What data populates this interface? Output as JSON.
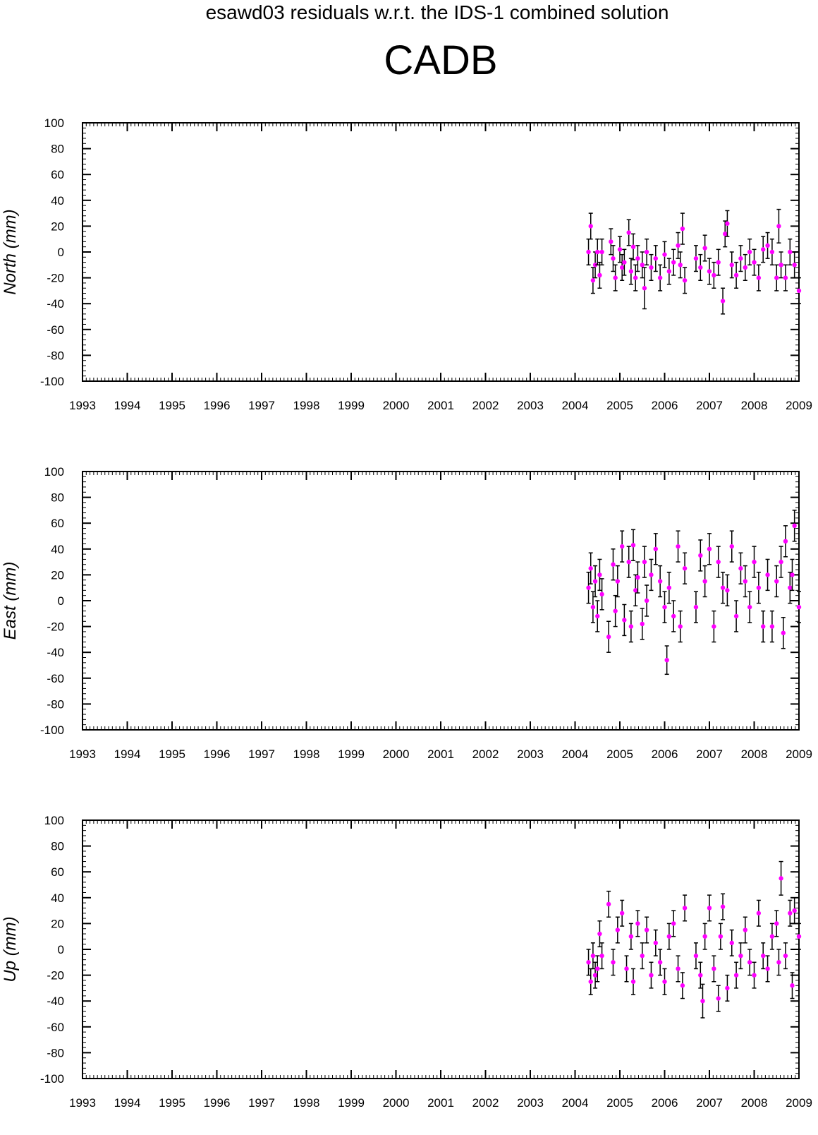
{
  "page": {
    "suptitle": "esawd03 residuals w.r.t. the IDS-1 combined solution",
    "station": "CADB"
  },
  "colors": {
    "points": "#ff00ff",
    "errorbars": "#000000",
    "axes": "#000000"
  },
  "chart_data": [
    {
      "type": "scatter",
      "ylabel": "North (mm)",
      "xlim": [
        1993,
        2009
      ],
      "ylim": [
        -100,
        100
      ],
      "x_ticks": [
        "1993",
        "1994",
        "1995",
        "1996",
        "1997",
        "1998",
        "1999",
        "2000",
        "2001",
        "2002",
        "2003",
        "2004",
        "2005",
        "2006",
        "2007",
        "2008",
        "2009"
      ],
      "y_ticks": [
        "100",
        "80",
        "60",
        "40",
        "20",
        "0",
        "-20",
        "-40",
        "-60",
        "-80",
        "-100"
      ],
      "grid": false,
      "series": [
        {
          "x": [
            2004.3,
            2004.35,
            2004.4,
            2004.45,
            2004.5,
            2004.55,
            2004.6,
            2004.8,
            2004.85,
            2004.9,
            2005.0,
            2005.05,
            2005.1,
            2005.2,
            2005.25,
            2005.3,
            2005.35,
            2005.4,
            2005.5,
            2005.55,
            2005.6,
            2005.7,
            2005.8,
            2005.9,
            2006.0,
            2006.1,
            2006.2,
            2006.3,
            2006.35,
            2006.4,
            2006.45,
            2006.7,
            2006.8,
            2006.9,
            2007.0,
            2007.1,
            2007.2,
            2007.3,
            2007.35,
            2007.4,
            2007.5,
            2007.6,
            2007.7,
            2007.8,
            2007.9,
            2008.0,
            2008.1,
            2008.2,
            2008.3,
            2008.4,
            2008.5,
            2008.55,
            2008.6,
            2008.7,
            2008.8,
            2008.9,
            2009.0
          ],
          "y": [
            0,
            20,
            -22,
            -10,
            0,
            -18,
            0,
            8,
            -5,
            -20,
            2,
            -12,
            -8,
            15,
            -15,
            4,
            -20,
            -5,
            -10,
            -28,
            0,
            -12,
            -5,
            -20,
            -2,
            -15,
            -8,
            5,
            -10,
            18,
            -22,
            -5,
            -12,
            3,
            -15,
            -18,
            -8,
            -38,
            14,
            22,
            -10,
            -18,
            -5,
            -12,
            0,
            -8,
            -20,
            2,
            5,
            0,
            -20,
            20,
            -10,
            -20,
            0,
            -10,
            -30
          ],
          "err": [
            10,
            10,
            10,
            10,
            10,
            10,
            10,
            10,
            10,
            10,
            10,
            10,
            10,
            10,
            10,
            10,
            10,
            10,
            10,
            16,
            10,
            10,
            10,
            10,
            10,
            10,
            10,
            10,
            10,
            12,
            10,
            10,
            10,
            10,
            10,
            10,
            10,
            10,
            10,
            10,
            10,
            10,
            10,
            10,
            10,
            10,
            10,
            10,
            10,
            10,
            10,
            13,
            10,
            10,
            10,
            10,
            10
          ]
        }
      ]
    },
    {
      "type": "scatter",
      "ylabel": "East (mm)",
      "xlim": [
        1993,
        2009
      ],
      "ylim": [
        -100,
        100
      ],
      "x_ticks": [
        "1993",
        "1994",
        "1995",
        "1996",
        "1997",
        "1998",
        "1999",
        "2000",
        "2001",
        "2002",
        "2003",
        "2004",
        "2005",
        "2006",
        "2007",
        "2008",
        "2009"
      ],
      "y_ticks": [
        "100",
        "80",
        "60",
        "40",
        "20",
        "0",
        "-20",
        "-40",
        "-60",
        "-80",
        "-100"
      ],
      "grid": false,
      "series": [
        {
          "x": [
            2004.3,
            2004.35,
            2004.4,
            2004.45,
            2004.5,
            2004.55,
            2004.6,
            2004.75,
            2004.85,
            2004.9,
            2004.95,
            2005.05,
            2005.1,
            2005.2,
            2005.25,
            2005.3,
            2005.35,
            2005.4,
            2005.5,
            2005.55,
            2005.6,
            2005.7,
            2005.8,
            2005.9,
            2006.0,
            2006.05,
            2006.1,
            2006.2,
            2006.3,
            2006.35,
            2006.45,
            2006.7,
            2006.8,
            2006.9,
            2007.0,
            2007.1,
            2007.2,
            2007.3,
            2007.4,
            2007.5,
            2007.6,
            2007.7,
            2007.8,
            2007.9,
            2008.0,
            2008.1,
            2008.2,
            2008.3,
            2008.4,
            2008.5,
            2008.6,
            2008.65,
            2008.7,
            2008.8,
            2008.85,
            2008.9,
            2009.0
          ],
          "y": [
            10,
            25,
            -5,
            15,
            -12,
            20,
            5,
            -28,
            28,
            -8,
            15,
            42,
            -15,
            30,
            -20,
            43,
            8,
            18,
            -18,
            30,
            0,
            20,
            40,
            15,
            -5,
            -46,
            10,
            -12,
            42,
            -20,
            25,
            -5,
            35,
            15,
            40,
            -20,
            30,
            10,
            8,
            42,
            -12,
            25,
            15,
            -5,
            30,
            10,
            -20,
            20,
            -20,
            15,
            30,
            -25,
            46,
            10,
            20,
            58,
            -5
          ],
          "err": [
            12,
            12,
            12,
            12,
            12,
            12,
            12,
            12,
            12,
            12,
            12,
            12,
            12,
            12,
            12,
            12,
            12,
            12,
            12,
            12,
            12,
            12,
            12,
            12,
            12,
            11,
            12,
            12,
            12,
            12,
            12,
            12,
            12,
            12,
            12,
            12,
            12,
            12,
            12,
            12,
            12,
            12,
            12,
            12,
            12,
            12,
            12,
            12,
            12,
            12,
            12,
            12,
            12,
            12,
            12,
            12,
            12
          ]
        }
      ]
    },
    {
      "type": "scatter",
      "ylabel": "Up (mm)",
      "xlim": [
        1993,
        2009
      ],
      "ylim": [
        -100,
        100
      ],
      "x_ticks": [
        "1993",
        "1994",
        "1995",
        "1996",
        "1997",
        "1998",
        "1999",
        "2000",
        "2001",
        "2002",
        "2003",
        "2004",
        "2005",
        "2006",
        "2007",
        "2008",
        "2009"
      ],
      "y_ticks": [
        "100",
        "80",
        "60",
        "40",
        "20",
        "0",
        "-20",
        "-40",
        "-60",
        "-80",
        "-100"
      ],
      "grid": false,
      "series": [
        {
          "x": [
            2004.3,
            2004.35,
            2004.4,
            2004.45,
            2004.5,
            2004.55,
            2004.6,
            2004.75,
            2004.85,
            2004.95,
            2005.05,
            2005.15,
            2005.25,
            2005.3,
            2005.4,
            2005.5,
            2005.6,
            2005.7,
            2005.8,
            2005.9,
            2006.0,
            2006.1,
            2006.2,
            2006.3,
            2006.4,
            2006.45,
            2006.7,
            2006.8,
            2006.85,
            2006.9,
            2007.0,
            2007.1,
            2007.2,
            2007.25,
            2007.3,
            2007.4,
            2007.5,
            2007.6,
            2007.7,
            2007.8,
            2007.9,
            2008.0,
            2008.1,
            2008.2,
            2008.3,
            2008.4,
            2008.5,
            2008.55,
            2008.6,
            2008.7,
            2008.8,
            2008.85,
            2008.9,
            2009.0
          ],
          "y": [
            -10,
            -25,
            -5,
            -20,
            -15,
            12,
            -5,
            35,
            -10,
            15,
            28,
            -15,
            10,
            -25,
            20,
            -5,
            15,
            -20,
            5,
            -10,
            -25,
            10,
            20,
            -15,
            -28,
            32,
            -5,
            -20,
            -40,
            10,
            32,
            -15,
            -38,
            10,
            33,
            -30,
            5,
            -20,
            -5,
            15,
            -10,
            -20,
            28,
            -5,
            -15,
            10,
            20,
            -10,
            55,
            -5,
            28,
            -28,
            30,
            10
          ],
          "err": [
            10,
            10,
            10,
            10,
            10,
            10,
            10,
            10,
            10,
            10,
            10,
            10,
            10,
            10,
            10,
            10,
            10,
            10,
            10,
            10,
            10,
            10,
            10,
            10,
            10,
            10,
            10,
            10,
            13,
            10,
            10,
            10,
            10,
            10,
            10,
            10,
            10,
            10,
            10,
            10,
            10,
            10,
            10,
            10,
            10,
            10,
            10,
            10,
            13,
            10,
            10,
            10,
            10,
            10
          ]
        }
      ]
    }
  ]
}
